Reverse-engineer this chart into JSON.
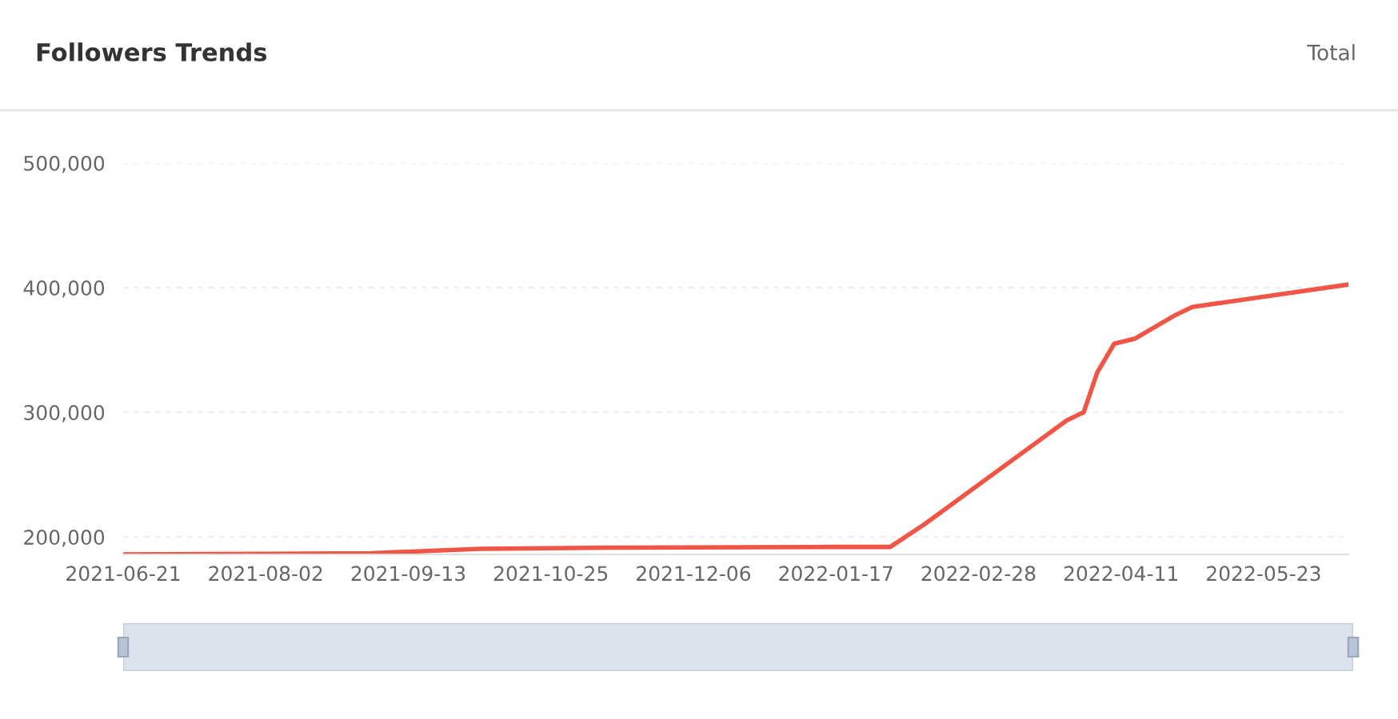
{
  "chart_data": {
    "type": "line",
    "title": "Followers Trends",
    "annotations": [
      "Total"
    ],
    "x": [
      "2021-06-21",
      "2021-08-02",
      "2021-09-02",
      "2021-10-04",
      "2021-11-15",
      "2022-01-17",
      "2022-02-02",
      "2022-02-12",
      "2022-03-26",
      "2022-03-31",
      "2022-04-04",
      "2022-04-09",
      "2022-04-15",
      "2022-04-27",
      "2022-05-02",
      "2022-06-17"
    ],
    "series": [
      {
        "color": "#f05545",
        "values": [
          186000,
          186500,
          187000,
          190500,
          191500,
          192000,
          192000,
          210000,
          293500,
          300000,
          332000,
          355000,
          359000,
          378000,
          384500,
          402500
        ]
      }
    ],
    "xlim": [
      "2021-06-21",
      "2022-06-17"
    ],
    "xticks": [
      "2021-06-21",
      "2021-08-02",
      "2021-09-13",
      "2021-10-25",
      "2021-12-06",
      "2022-01-17",
      "2022-02-28",
      "2022-04-11",
      "2022-05-23"
    ],
    "ylim": [
      186000,
      500000
    ],
    "yticks": [
      {
        "value": 200000,
        "label": "200,000"
      },
      {
        "value": 300000,
        "label": "300,000"
      },
      {
        "value": 400000,
        "label": "400,000"
      },
      {
        "value": 500000,
        "label": "500,000"
      }
    ],
    "grid": "y",
    "legend": false,
    "marker": "none",
    "line_style": "solid"
  }
}
